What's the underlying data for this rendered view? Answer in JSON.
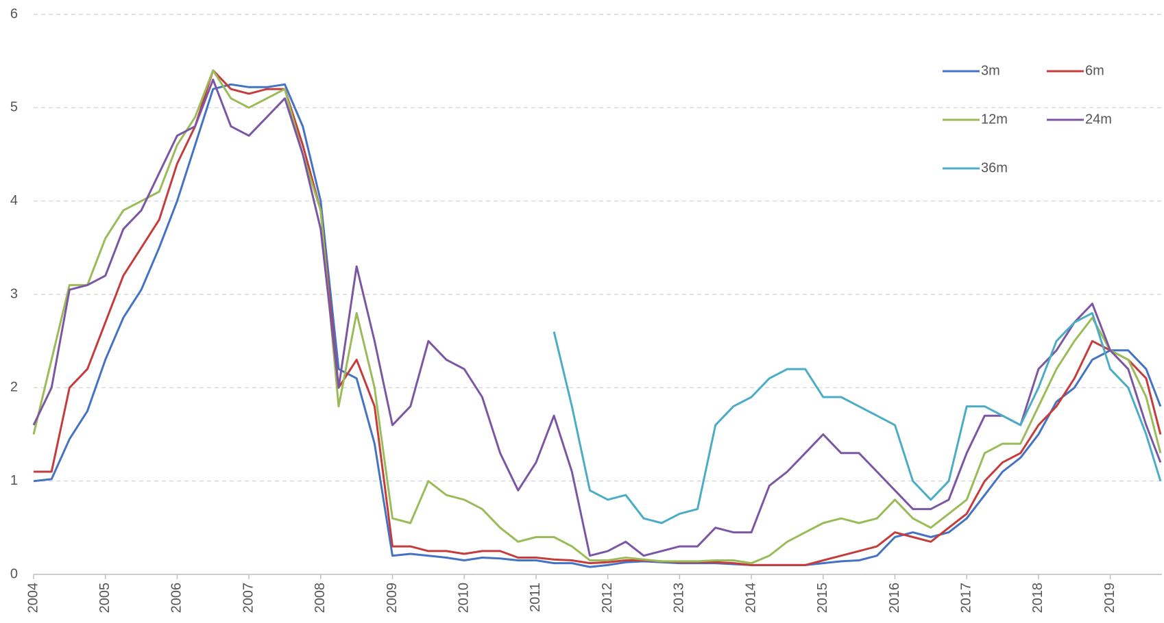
{
  "chart_data": {
    "type": "line",
    "x": [
      2004,
      2004.25,
      2004.5,
      2004.75,
      2005,
      2005.25,
      2005.5,
      2005.75,
      2006,
      2006.25,
      2006.5,
      2006.75,
      2007,
      2007.25,
      2007.5,
      2007.75,
      2008,
      2008.25,
      2008.5,
      2008.75,
      2009,
      2009.25,
      2009.5,
      2009.75,
      2010,
      2010.25,
      2010.5,
      2010.75,
      2011,
      2011.25,
      2011.5,
      2011.75,
      2012,
      2012.25,
      2012.5,
      2012.75,
      2013,
      2013.25,
      2013.5,
      2013.75,
      2014,
      2014.25,
      2014.5,
      2014.75,
      2015,
      2015.25,
      2015.5,
      2015.75,
      2016,
      2016.25,
      2016.5,
      2016.75,
      2017,
      2017.25,
      2017.5,
      2017.75,
      2018,
      2018.25,
      2018.5,
      2018.75,
      2019,
      2019.25,
      2019.5,
      2019.7
    ],
    "series": [
      {
        "name": "3m",
        "color": "#4472c4",
        "values": [
          1.0,
          1.02,
          1.45,
          1.75,
          2.3,
          2.75,
          3.05,
          3.5,
          4.0,
          4.6,
          5.2,
          5.25,
          5.22,
          5.22,
          5.25,
          4.8,
          4.0,
          2.2,
          2.1,
          1.4,
          0.2,
          0.22,
          0.2,
          0.18,
          0.15,
          0.18,
          0.17,
          0.15,
          0.15,
          0.12,
          0.12,
          0.08,
          0.1,
          0.13,
          0.14,
          0.13,
          0.12,
          0.12,
          0.12,
          0.11,
          0.1,
          0.1,
          0.1,
          0.1,
          0.12,
          0.14,
          0.15,
          0.2,
          0.4,
          0.45,
          0.4,
          0.45,
          0.6,
          0.85,
          1.1,
          1.25,
          1.5,
          1.85,
          2.0,
          2.3,
          2.4,
          2.4,
          2.2,
          1.8
        ]
      },
      {
        "name": "6m",
        "color": "#c43c3c",
        "values": [
          1.1,
          1.1,
          2.0,
          2.2,
          2.7,
          3.2,
          3.5,
          3.8,
          4.4,
          4.8,
          5.4,
          5.2,
          5.15,
          5.2,
          5.2,
          4.6,
          3.9,
          2.0,
          2.3,
          1.8,
          0.3,
          0.3,
          0.25,
          0.25,
          0.22,
          0.25,
          0.25,
          0.18,
          0.18,
          0.16,
          0.15,
          0.12,
          0.13,
          0.15,
          0.15,
          0.14,
          0.13,
          0.13,
          0.13,
          0.12,
          0.1,
          0.1,
          0.1,
          0.1,
          0.15,
          0.2,
          0.25,
          0.3,
          0.45,
          0.4,
          0.35,
          0.5,
          0.65,
          1.0,
          1.2,
          1.3,
          1.6,
          1.8,
          2.1,
          2.5,
          2.4,
          2.3,
          2.1,
          1.5
        ]
      },
      {
        "name": "12m",
        "color": "#9bbb59",
        "values": [
          1.5,
          2.3,
          3.1,
          3.1,
          3.6,
          3.9,
          4.0,
          4.1,
          4.6,
          4.9,
          5.4,
          5.1,
          5.0,
          5.1,
          5.2,
          4.5,
          3.9,
          1.8,
          2.8,
          2.0,
          0.6,
          0.55,
          1.0,
          0.85,
          0.8,
          0.7,
          0.5,
          0.35,
          0.4,
          0.4,
          0.3,
          0.15,
          0.15,
          0.18,
          0.16,
          0.14,
          0.14,
          0.14,
          0.15,
          0.15,
          0.12,
          0.2,
          0.35,
          0.45,
          0.55,
          0.6,
          0.55,
          0.6,
          0.8,
          0.6,
          0.5,
          0.65,
          0.8,
          1.3,
          1.4,
          1.4,
          1.8,
          2.2,
          2.5,
          2.75,
          2.4,
          2.3,
          1.9,
          1.3
        ]
      },
      {
        "name": "24m",
        "color": "#7b56a3",
        "values": [
          1.6,
          2.0,
          3.05,
          3.1,
          3.2,
          3.7,
          3.9,
          4.3,
          4.7,
          4.8,
          5.3,
          4.8,
          4.7,
          4.9,
          5.1,
          4.5,
          3.7,
          2.0,
          3.3,
          2.5,
          1.6,
          1.8,
          2.5,
          2.3,
          2.2,
          1.9,
          1.3,
          0.9,
          1.2,
          1.7,
          1.1,
          0.2,
          0.25,
          0.35,
          0.2,
          0.25,
          0.3,
          0.3,
          0.5,
          0.45,
          0.45,
          0.95,
          1.1,
          1.3,
          1.5,
          1.3,
          1.3,
          1.1,
          0.9,
          0.7,
          0.7,
          0.8,
          1.3,
          1.7,
          1.7,
          1.6,
          2.2,
          2.4,
          2.7,
          2.9,
          2.4,
          2.2,
          1.6,
          1.2
        ]
      },
      {
        "name": "36m",
        "color": "#4bacc6",
        "values": [
          null,
          null,
          null,
          null,
          null,
          null,
          null,
          null,
          null,
          null,
          null,
          null,
          null,
          null,
          null,
          null,
          null,
          null,
          null,
          null,
          null,
          null,
          null,
          null,
          null,
          null,
          null,
          null,
          null,
          2.6,
          1.8,
          0.9,
          0.8,
          0.85,
          0.6,
          0.55,
          0.65,
          0.7,
          1.6,
          1.8,
          1.9,
          2.1,
          2.2,
          2.2,
          1.9,
          1.9,
          1.8,
          1.7,
          1.6,
          1.0,
          0.8,
          1.0,
          1.8,
          1.8,
          1.7,
          1.6,
          2.0,
          2.5,
          2.7,
          2.8,
          2.2,
          2.0,
          1.5,
          1.0
        ]
      }
    ],
    "xlim": [
      2004,
      2019.72
    ],
    "xticks": [
      2004,
      2005,
      2006,
      2007,
      2008,
      2009,
      2010,
      2011,
      2012,
      2013,
      2014,
      2015,
      2016,
      2017,
      2018,
      2019
    ],
    "ylim": [
      0,
      6
    ],
    "yticks": [
      0,
      1,
      2,
      3,
      4,
      5,
      6
    ],
    "grid": true,
    "legend": "upper right"
  }
}
